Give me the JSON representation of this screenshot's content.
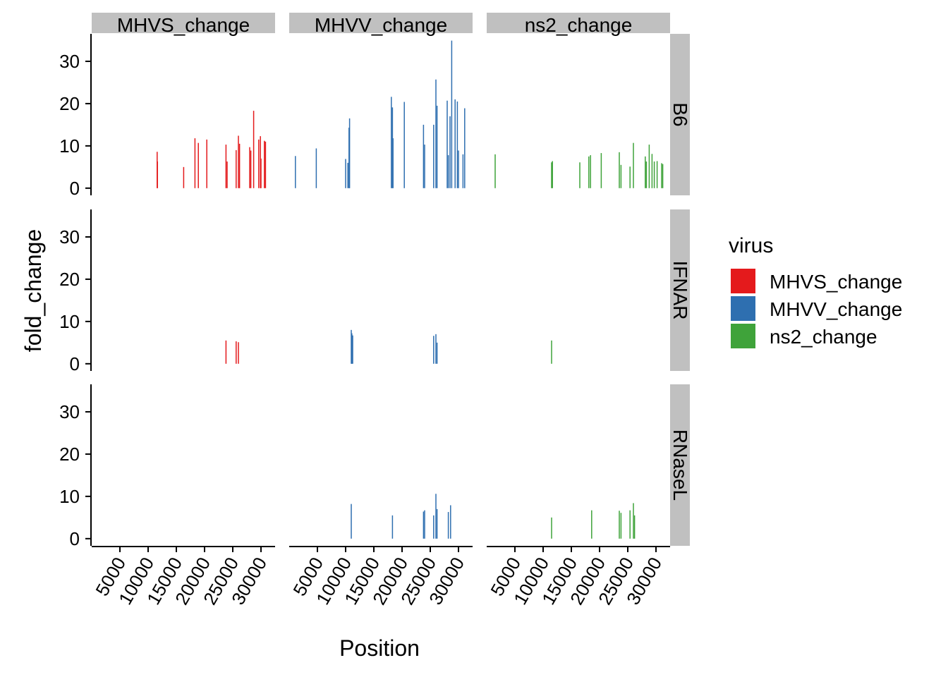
{
  "chart_data": {
    "type": "bar",
    "xlabel": "Position",
    "ylabel": "fold_change",
    "xlim": [
      0,
      32500
    ],
    "ylim": [
      -1.7,
      36.5
    ],
    "x_ticks": [
      5000,
      10000,
      15000,
      20000,
      25000,
      30000
    ],
    "x_tick_labels": [
      "5000",
      "10000",
      "15000",
      "20000",
      "25000",
      "30000"
    ],
    "y_ticks": [
      0,
      10,
      20,
      30
    ],
    "y_tick_labels": [
      "0",
      "10",
      "20",
      "30"
    ],
    "grid": false,
    "legend": {
      "title": "virus",
      "position": "right",
      "entries": [
        {
          "name": "MHVS_change",
          "color": "#e41a1c"
        },
        {
          "name": "MHVV_change",
          "color": "#2e6fb0"
        },
        {
          "name": "ns2_change",
          "color": "#3fa33a"
        }
      ]
    },
    "col_facets": [
      {
        "key": "MHVS_change",
        "label": "MHVS_change",
        "color": "#e41a1c"
      },
      {
        "key": "MHVV_change",
        "label": "MHVV_change",
        "color": "#2e6fb0"
      },
      {
        "key": "ns2_change",
        "label": "ns2_change",
        "color": "#3fa33a"
      }
    ],
    "row_facets": [
      {
        "key": "B6",
        "label": "B6"
      },
      {
        "key": "IFNAR",
        "label": "IFNAR"
      },
      {
        "key": "RNaseL",
        "label": "RNaseL"
      }
    ],
    "series": {
      "B6": {
        "MHVS_change": [
          [
            11600,
            8.6
          ],
          [
            11650,
            6.3
          ],
          [
            16300,
            5.0
          ],
          [
            18300,
            11.8
          ],
          [
            18900,
            10.7
          ],
          [
            20400,
            11.5
          ],
          [
            23800,
            10.3
          ],
          [
            24000,
            6.3
          ],
          [
            25600,
            9.0
          ],
          [
            26000,
            12.4
          ],
          [
            26200,
            10.5
          ],
          [
            28000,
            9.7
          ],
          [
            28200,
            8.9
          ],
          [
            28700,
            18.3
          ],
          [
            29600,
            11.5
          ],
          [
            29900,
            12.3
          ],
          [
            30000,
            7.0
          ],
          [
            30600,
            11.2
          ],
          [
            30800,
            11.0
          ]
        ],
        "MHVV_change": [
          [
            1100,
            7.6
          ],
          [
            4800,
            9.4
          ],
          [
            10000,
            6.9
          ],
          [
            10400,
            6.0
          ],
          [
            10600,
            14.3
          ],
          [
            10700,
            16.5
          ],
          [
            18100,
            21.6
          ],
          [
            18300,
            19.1
          ],
          [
            18400,
            11.8
          ],
          [
            20400,
            20.4
          ],
          [
            23800,
            15.0
          ],
          [
            24000,
            10.3
          ],
          [
            25600,
            15.0
          ],
          [
            26000,
            25.7
          ],
          [
            26200,
            19.5
          ],
          [
            28000,
            20.7
          ],
          [
            28200,
            7.8
          ],
          [
            28500,
            17.0
          ],
          [
            28800,
            34.9
          ],
          [
            29400,
            21.0
          ],
          [
            29800,
            20.5
          ],
          [
            30000,
            8.9
          ],
          [
            30800,
            8.0
          ],
          [
            31100,
            18.9
          ]
        ],
        "ns2_change": [
          [
            1500,
            8.0
          ],
          [
            11500,
            6.1
          ],
          [
            11650,
            6.4
          ],
          [
            16500,
            6.1
          ],
          [
            18100,
            7.5
          ],
          [
            18400,
            7.8
          ],
          [
            20300,
            8.3
          ],
          [
            23500,
            8.5
          ],
          [
            23800,
            5.5
          ],
          [
            25400,
            5.1
          ],
          [
            26000,
            10.7
          ],
          [
            28100,
            7.5
          ],
          [
            28300,
            6.3
          ],
          [
            28800,
            10.3
          ],
          [
            29300,
            8.1
          ],
          [
            29700,
            6.3
          ],
          [
            30200,
            6.4
          ],
          [
            31000,
            5.9
          ],
          [
            31200,
            5.7
          ]
        ]
      },
      "IFNAR": {
        "MHVS_change": [
          [
            23800,
            5.5
          ],
          [
            25600,
            5.3
          ],
          [
            26000,
            5.1
          ]
        ],
        "MHVV_change": [
          [
            11000,
            8.0
          ],
          [
            11100,
            7.2
          ],
          [
            11250,
            6.7
          ],
          [
            25600,
            6.6
          ],
          [
            26000,
            7.0
          ],
          [
            26200,
            5.0
          ]
        ],
        "ns2_change": [
          [
            11500,
            5.5
          ]
        ]
      },
      "RNaseL": {
        "MHVS_change": [],
        "MHVV_change": [
          [
            11000,
            8.2
          ],
          [
            18300,
            5.5
          ],
          [
            23800,
            6.4
          ],
          [
            24000,
            6.7
          ],
          [
            25600,
            5.5
          ],
          [
            26000,
            10.6
          ],
          [
            26200,
            7.0
          ],
          [
            28200,
            6.3
          ],
          [
            28600,
            7.9
          ]
        ],
        "ns2_change": [
          [
            11500,
            5.0
          ],
          [
            18600,
            6.7
          ],
          [
            23500,
            6.6
          ],
          [
            23800,
            6.1
          ],
          [
            25400,
            6.7
          ],
          [
            26000,
            8.4
          ],
          [
            26200,
            5.5
          ]
        ]
      }
    }
  }
}
